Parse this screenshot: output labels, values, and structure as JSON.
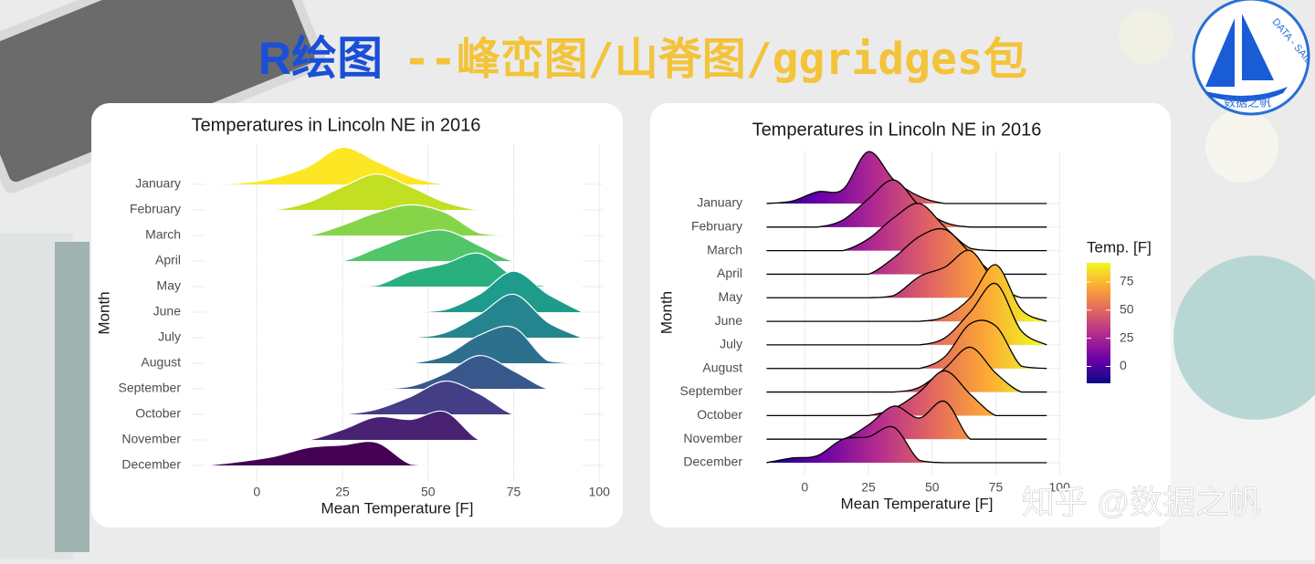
{
  "header": {
    "title_blue": "R绘图",
    "title_gold": "--峰峦图/山脊图/ggridges包"
  },
  "logo": {
    "ring": "DATA - SAIL",
    "name": "数据之帆"
  },
  "watermark": "知乎 @数据之帆",
  "chart_data": [
    {
      "type": "ridgeline",
      "title": "Temperatures in Lincoln NE in 2016",
      "x_label": "Mean Temperature [F]",
      "y_label": "Month",
      "categories": [
        "January",
        "February",
        "March",
        "April",
        "May",
        "June",
        "July",
        "August",
        "September",
        "October",
        "November",
        "December"
      ],
      "x": [
        -15,
        -5,
        5,
        15,
        25,
        35,
        45,
        55,
        65,
        75,
        85,
        95
      ],
      "densities": [
        [
          0,
          0.05,
          0.25,
          0.7,
          1.45,
          0.9,
          0.3,
          0,
          0,
          0,
          0,
          0
        ],
        [
          0,
          0,
          0,
          0.3,
          0.9,
          1.4,
          0.9,
          0.3,
          0,
          0,
          0,
          0
        ],
        [
          0,
          0,
          0,
          0,
          0.4,
          0.9,
          1.2,
          0.9,
          0.1,
          0,
          0,
          0
        ],
        [
          0,
          0,
          0,
          0,
          0,
          0.5,
          1.0,
          1.2,
          0.6,
          0,
          0,
          0
        ],
        [
          0,
          0,
          0,
          0,
          0,
          0.05,
          0.6,
          0.9,
          1.3,
          0.4,
          0,
          0
        ],
        [
          0,
          0,
          0,
          0,
          0,
          0,
          0,
          0.1,
          0.7,
          1.6,
          0.7,
          0
        ],
        [
          0,
          0,
          0,
          0,
          0,
          0,
          0,
          0.2,
          0.9,
          1.7,
          0.6,
          0
        ],
        [
          0,
          0,
          0,
          0,
          0,
          0,
          0,
          0.3,
          1.1,
          1.4,
          0.1,
          0
        ],
        [
          0,
          0,
          0,
          0,
          0,
          0,
          0.1,
          0.6,
          1.3,
          0.7,
          0,
          0
        ],
        [
          0,
          0,
          0,
          0,
          0,
          0.2,
          0.7,
          1.3,
          0.8,
          0,
          0,
          0
        ],
        [
          0,
          0,
          0,
          0,
          0.4,
          0.9,
          0.8,
          1.1,
          0,
          0,
          0,
          0
        ],
        [
          0,
          0.15,
          0.35,
          0.7,
          0.8,
          0.9,
          0.05,
          0,
          0,
          0,
          0,
          0
        ]
      ],
      "colors": [
        "#fde725",
        "#c2df23",
        "#86d549",
        "#52c569",
        "#2ab07f",
        "#1e9b8a",
        "#25858e",
        "#2d708e",
        "#38588c",
        "#433e85",
        "#482173",
        "#440154"
      ],
      "outline": "#ffffff",
      "xlim": [
        -19,
        101
      ],
      "xticks": [
        0,
        25,
        50,
        75,
        100
      ],
      "grid": true
    },
    {
      "type": "ridgeline",
      "title": "Temperatures in Lincoln NE in 2016",
      "x_label": "Mean Temperature [F]",
      "y_label": "Month",
      "categories": [
        "January",
        "February",
        "March",
        "April",
        "May",
        "June",
        "July",
        "August",
        "September",
        "October",
        "November",
        "December"
      ],
      "x": [
        -15,
        -5,
        5,
        15,
        25,
        35,
        45,
        55,
        65,
        75,
        85,
        95
      ],
      "densities": [
        [
          0,
          0.1,
          0.5,
          0.6,
          2.2,
          1.0,
          0.3,
          0,
          0,
          0,
          0,
          0
        ],
        [
          0,
          0,
          0,
          0.3,
          1.2,
          2.0,
          0.9,
          0.2,
          0,
          0,
          0,
          0
        ],
        [
          0,
          0,
          0,
          0,
          0.5,
          1.4,
          2.0,
          1.0,
          0.1,
          0,
          0,
          0
        ],
        [
          0,
          0,
          0,
          0,
          0,
          0.7,
          1.6,
          1.9,
          0.9,
          0,
          0,
          0
        ],
        [
          0,
          0,
          0,
          0,
          0,
          0.1,
          0.9,
          1.3,
          2.0,
          0.6,
          0,
          0
        ],
        [
          0,
          0,
          0,
          0,
          0,
          0,
          0,
          0.2,
          1.0,
          2.4,
          0.5,
          0
        ],
        [
          0,
          0,
          0,
          0,
          0,
          0,
          0,
          0.3,
          1.4,
          2.6,
          0.6,
          0
        ],
        [
          0,
          0,
          0,
          0,
          0,
          0,
          0,
          0.5,
          1.9,
          1.8,
          0.1,
          0
        ],
        [
          0,
          0,
          0,
          0,
          0,
          0,
          0.2,
          1.0,
          1.9,
          0.8,
          0,
          0
        ],
        [
          0,
          0,
          0,
          0,
          0,
          0.3,
          1.0,
          1.9,
          0.9,
          0,
          0,
          0
        ],
        [
          0,
          0,
          0,
          0,
          0.6,
          1.4,
          0.9,
          1.6,
          0,
          0,
          0,
          0
        ],
        [
          0,
          0.2,
          0.3,
          1.0,
          1.1,
          1.5,
          0.1,
          0,
          0,
          0,
          0,
          0
        ]
      ],
      "outline": "#000000",
      "fill_scale": {
        "title": "Temp. [F]",
        "limits": [
          -15,
          92
        ],
        "ticks": [
          0,
          25,
          50,
          75
        ],
        "colors": [
          "#0d0887",
          "#6a00a8",
          "#b12a90",
          "#e16462",
          "#fca636",
          "#f0f921"
        ]
      },
      "xlim": [
        -13,
        101
      ],
      "xticks": [
        0,
        25,
        50,
        75,
        100
      ],
      "grid": true
    }
  ]
}
